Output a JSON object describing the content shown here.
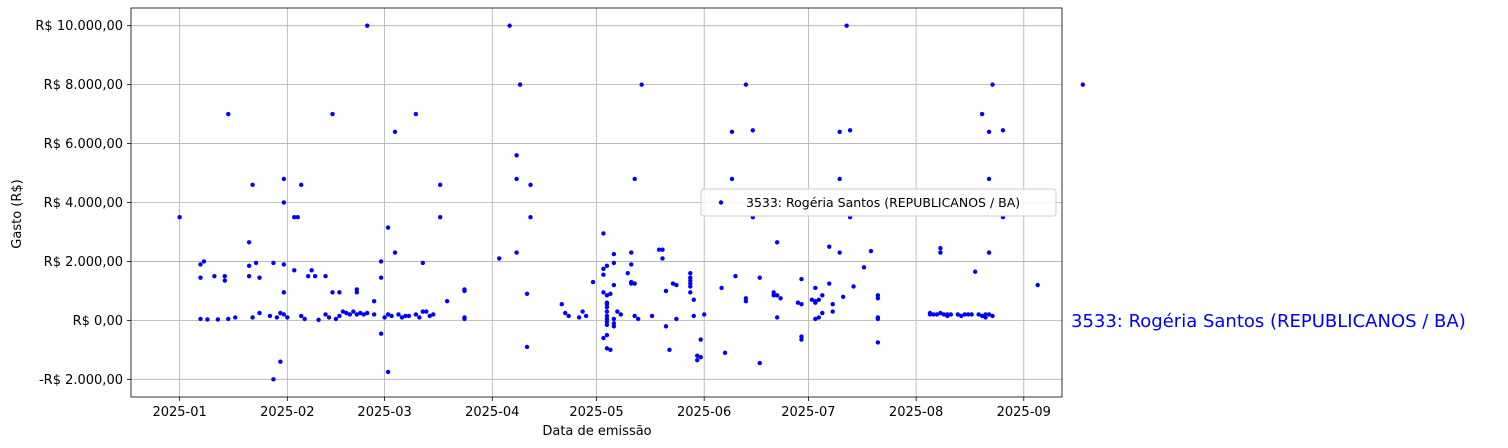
{
  "chart_data": {
    "type": "scatter",
    "xlabel": "Data de emissão",
    "ylabel": "Gasto (R$)",
    "x_ticks": [
      "2025-01",
      "2025-02",
      "2025-03",
      "2025-04",
      "2025-05",
      "2025-06",
      "2025-07",
      "2025-08",
      "2025-09"
    ],
    "y_ticks": [
      -2000,
      0,
      2000,
      4000,
      6000,
      8000,
      10000
    ],
    "y_tick_labels": [
      "-R$ 2.000,00",
      "R$ 0,00",
      "R$ 2.000,00",
      "R$ 4.000,00",
      "R$ 6.000,00",
      "R$ 8.000,00",
      "R$ 10.000,00"
    ],
    "xlim": [
      "2024-12-18",
      "2025-09-12"
    ],
    "ylim": [
      -2600,
      10600
    ],
    "grid": true,
    "legend_placement": "center-right",
    "side_label": "3533: Rogéria Santos (REPUBLICANOS / BA)",
    "series": [
      {
        "name": "3533: Rogéria Santos (REPUBLICANOS / BA)",
        "color": "#0000ff",
        "points": [
          [
            "2025-01-01",
            3500
          ],
          [
            "2025-01-07",
            1900
          ],
          [
            "2025-01-07",
            1450
          ],
          [
            "2025-01-08",
            2000
          ],
          [
            "2025-01-07",
            50
          ],
          [
            "2025-01-09",
            30
          ],
          [
            "2025-01-11",
            1500
          ],
          [
            "2025-01-12",
            30
          ],
          [
            "2025-01-14",
            1500
          ],
          [
            "2025-01-14",
            1350
          ],
          [
            "2025-01-15",
            7000
          ],
          [
            "2025-01-15",
            50
          ],
          [
            "2025-01-17",
            100
          ],
          [
            "2025-01-21",
            2650
          ],
          [
            "2025-01-22",
            4600
          ],
          [
            "2025-01-21",
            1850
          ],
          [
            "2025-01-21",
            1500
          ],
          [
            "2025-01-22",
            100
          ],
          [
            "2025-01-23",
            1950
          ],
          [
            "2025-01-24",
            1450
          ],
          [
            "2025-01-24",
            250
          ],
          [
            "2025-01-27",
            150
          ],
          [
            "2025-01-28",
            1950
          ],
          [
            "2025-01-28",
            -2000
          ],
          [
            "2025-01-29",
            100
          ],
          [
            "2025-01-30",
            -1400
          ],
          [
            "2025-01-30",
            250
          ],
          [
            "2025-01-31",
            4800
          ],
          [
            "2025-01-31",
            4000
          ],
          [
            "2025-01-31",
            1900
          ],
          [
            "2025-01-31",
            950
          ],
          [
            "2025-01-31",
            200
          ],
          [
            "2025-02-01",
            100
          ],
          [
            "2025-02-03",
            1700
          ],
          [
            "2025-02-03",
            3500
          ],
          [
            "2025-02-04",
            3500
          ],
          [
            "2025-02-05",
            4600
          ],
          [
            "2025-02-05",
            150
          ],
          [
            "2025-02-06",
            50
          ],
          [
            "2025-02-07",
            1500
          ],
          [
            "2025-02-08",
            1700
          ],
          [
            "2025-02-09",
            1500
          ],
          [
            "2025-02-10",
            20
          ],
          [
            "2025-02-12",
            1500
          ],
          [
            "2025-02-12",
            200
          ],
          [
            "2025-02-13",
            100
          ],
          [
            "2025-02-14",
            7000
          ],
          [
            "2025-02-14",
            950
          ],
          [
            "2025-02-15",
            50
          ],
          [
            "2025-02-16",
            950
          ],
          [
            "2025-02-16",
            150
          ],
          [
            "2025-02-17",
            300
          ],
          [
            "2025-02-18",
            250
          ],
          [
            "2025-02-19",
            200
          ],
          [
            "2025-02-20",
            300
          ],
          [
            "2025-02-21",
            1050
          ],
          [
            "2025-02-21",
            950
          ],
          [
            "2025-02-21",
            200
          ],
          [
            "2025-02-22",
            250
          ],
          [
            "2025-02-23",
            200
          ],
          [
            "2025-02-24",
            10000
          ],
          [
            "2025-02-24",
            250
          ],
          [
            "2025-02-26",
            650
          ],
          [
            "2025-02-26",
            200
          ],
          [
            "2025-02-28",
            2000
          ],
          [
            "2025-02-28",
            1450
          ],
          [
            "2025-02-28",
            -450
          ],
          [
            "2025-03-01",
            100
          ],
          [
            "2025-03-02",
            -1750
          ],
          [
            "2025-03-02",
            3150
          ],
          [
            "2025-03-02",
            200
          ],
          [
            "2025-03-03",
            150
          ],
          [
            "2025-03-04",
            6400
          ],
          [
            "2025-03-04",
            2300
          ],
          [
            "2025-03-05",
            200
          ],
          [
            "2025-03-06",
            100
          ],
          [
            "2025-03-07",
            150
          ],
          [
            "2025-03-08",
            150
          ],
          [
            "2025-03-10",
            7000
          ],
          [
            "2025-03-10",
            200
          ],
          [
            "2025-03-11",
            100
          ],
          [
            "2025-03-12",
            300
          ],
          [
            "2025-03-12",
            1950
          ],
          [
            "2025-03-13",
            300
          ],
          [
            "2025-03-14",
            150
          ],
          [
            "2025-03-15",
            200
          ],
          [
            "2025-03-17",
            4600
          ],
          [
            "2025-03-17",
            3500
          ],
          [
            "2025-03-19",
            650
          ],
          [
            "2025-03-24",
            1050
          ],
          [
            "2025-03-24",
            1000
          ],
          [
            "2025-03-24",
            100
          ],
          [
            "2025-03-24",
            50
          ],
          [
            "2025-04-03",
            2100
          ],
          [
            "2025-04-06",
            10000
          ],
          [
            "2025-04-08",
            5600
          ],
          [
            "2025-04-08",
            4800
          ],
          [
            "2025-04-08",
            2300
          ],
          [
            "2025-04-09",
            8000
          ],
          [
            "2025-04-11",
            900
          ],
          [
            "2025-04-11",
            -900
          ],
          [
            "2025-04-12",
            4600
          ],
          [
            "2025-04-12",
            3500
          ],
          [
            "2025-04-21",
            550
          ],
          [
            "2025-04-22",
            250
          ],
          [
            "2025-04-23",
            150
          ],
          [
            "2025-04-26",
            100
          ],
          [
            "2025-04-27",
            300
          ],
          [
            "2025-04-28",
            150
          ],
          [
            "2025-04-30",
            1300
          ],
          [
            "2025-05-03",
            2950
          ],
          [
            "2025-05-03",
            1750
          ],
          [
            "2025-05-04",
            1850
          ],
          [
            "2025-05-03",
            1550
          ],
          [
            "2025-05-03",
            950
          ],
          [
            "2025-05-04",
            850
          ],
          [
            "2025-05-04",
            600
          ],
          [
            "2025-05-04",
            550
          ],
          [
            "2025-05-04",
            450
          ],
          [
            "2025-05-04",
            300
          ],
          [
            "2025-05-04",
            150
          ],
          [
            "2025-05-04",
            50
          ],
          [
            "2025-05-04",
            -50
          ],
          [
            "2025-05-04",
            -150
          ],
          [
            "2025-05-04",
            -500
          ],
          [
            "2025-05-03",
            -600
          ],
          [
            "2025-05-04",
            -950
          ],
          [
            "2025-05-05",
            -1000
          ],
          [
            "2025-05-05",
            900
          ],
          [
            "2025-05-06",
            1950
          ],
          [
            "2025-05-06",
            2250
          ],
          [
            "2025-05-06",
            1200
          ],
          [
            "2025-05-06",
            -100
          ],
          [
            "2025-05-06",
            -200
          ],
          [
            "2025-05-06",
            50
          ],
          [
            "2025-05-07",
            300
          ],
          [
            "2025-05-08",
            200
          ],
          [
            "2025-05-10",
            1600
          ],
          [
            "2025-05-11",
            2300
          ],
          [
            "2025-05-11",
            1900
          ],
          [
            "2025-05-11",
            1300
          ],
          [
            "2025-05-11",
            1250
          ],
          [
            "2025-05-12",
            4800
          ],
          [
            "2025-05-12",
            1250
          ],
          [
            "2025-05-12",
            150
          ],
          [
            "2025-05-13",
            50
          ],
          [
            "2025-05-14",
            8000
          ],
          [
            "2025-05-17",
            150
          ],
          [
            "2025-05-19",
            2400
          ],
          [
            "2025-05-20",
            2400
          ],
          [
            "2025-05-20",
            2100
          ],
          [
            "2025-05-21",
            1000
          ],
          [
            "2025-05-21",
            -200
          ],
          [
            "2025-05-22",
            -1000
          ],
          [
            "2025-05-23",
            1250
          ],
          [
            "2025-05-24",
            1200
          ],
          [
            "2025-05-24",
            50
          ],
          [
            "2025-05-28",
            1600
          ],
          [
            "2025-05-28",
            1450
          ],
          [
            "2025-05-28",
            1350
          ],
          [
            "2025-05-28",
            1250
          ],
          [
            "2025-05-28",
            1150
          ],
          [
            "2025-05-28",
            950
          ],
          [
            "2025-05-29",
            700
          ],
          [
            "2025-05-29",
            150
          ],
          [
            "2025-05-30",
            -1200
          ],
          [
            "2025-05-30",
            -1350
          ],
          [
            "2025-05-31",
            -1250
          ],
          [
            "2025-05-31",
            -650
          ],
          [
            "2025-06-01",
            200
          ],
          [
            "2025-06-06",
            1100
          ],
          [
            "2025-06-07",
            -1100
          ],
          [
            "2025-06-09",
            6400
          ],
          [
            "2025-06-09",
            4800
          ],
          [
            "2025-06-10",
            1500
          ],
          [
            "2025-06-13",
            8000
          ],
          [
            "2025-06-13",
            750
          ],
          [
            "2025-06-13",
            650
          ],
          [
            "2025-06-15",
            6450
          ],
          [
            "2025-06-15",
            3500
          ],
          [
            "2025-06-17",
            1450
          ],
          [
            "2025-06-17",
            -1450
          ],
          [
            "2025-06-21",
            850
          ],
          [
            "2025-06-21",
            950
          ],
          [
            "2025-06-22",
            2650
          ],
          [
            "2025-06-22",
            850
          ],
          [
            "2025-06-22",
            100
          ],
          [
            "2025-06-23",
            750
          ],
          [
            "2025-06-28",
            600
          ],
          [
            "2025-06-29",
            1400
          ],
          [
            "2025-06-29",
            550
          ],
          [
            "2025-06-29",
            -550
          ],
          [
            "2025-06-29",
            -650
          ],
          [
            "2025-07-02",
            700
          ],
          [
            "2025-07-03",
            650
          ],
          [
            "2025-07-03",
            600
          ],
          [
            "2025-07-03",
            1100
          ],
          [
            "2025-07-03",
            50
          ],
          [
            "2025-07-04",
            100
          ],
          [
            "2025-07-04",
            700
          ],
          [
            "2025-07-05",
            850
          ],
          [
            "2025-07-05",
            250
          ],
          [
            "2025-07-07",
            2500
          ],
          [
            "2025-07-07",
            1250
          ],
          [
            "2025-07-08",
            300
          ],
          [
            "2025-07-08",
            550
          ],
          [
            "2025-07-10",
            6400
          ],
          [
            "2025-07-10",
            4800
          ],
          [
            "2025-07-10",
            2300
          ],
          [
            "2025-07-11",
            800
          ],
          [
            "2025-07-12",
            10000
          ],
          [
            "2025-07-13",
            6450
          ],
          [
            "2025-07-13",
            3500
          ],
          [
            "2025-07-14",
            1150
          ],
          [
            "2025-07-17",
            1800
          ],
          [
            "2025-07-19",
            2350
          ],
          [
            "2025-07-21",
            850
          ],
          [
            "2025-07-21",
            750
          ],
          [
            "2025-07-21",
            100
          ],
          [
            "2025-07-21",
            50
          ],
          [
            "2025-07-21",
            -750
          ],
          [
            "2025-08-05",
            200
          ],
          [
            "2025-08-05",
            250
          ],
          [
            "2025-08-06",
            200
          ],
          [
            "2025-08-07",
            200
          ],
          [
            "2025-08-08",
            250
          ],
          [
            "2025-08-08",
            2450
          ],
          [
            "2025-08-08",
            2300
          ],
          [
            "2025-08-09",
            200
          ],
          [
            "2025-08-10",
            150
          ],
          [
            "2025-08-10",
            200
          ],
          [
            "2025-08-11",
            200
          ],
          [
            "2025-08-13",
            200
          ],
          [
            "2025-08-14",
            150
          ],
          [
            "2025-08-15",
            200
          ],
          [
            "2025-08-16",
            200
          ],
          [
            "2025-08-17",
            200
          ],
          [
            "2025-08-18",
            1650
          ],
          [
            "2025-08-19",
            200
          ],
          [
            "2025-08-20",
            150
          ],
          [
            "2025-08-21",
            200
          ],
          [
            "2025-08-21",
            100
          ],
          [
            "2025-08-22",
            6400
          ],
          [
            "2025-08-22",
            4800
          ],
          [
            "2025-08-22",
            2300
          ],
          [
            "2025-08-22",
            200
          ],
          [
            "2025-08-23",
            150
          ],
          [
            "2025-08-23",
            8000
          ],
          [
            "2025-08-26",
            6450
          ],
          [
            "2025-08-26",
            3500
          ],
          [
            "2025-08-20",
            7000
          ],
          [
            "2025-09-05",
            1200
          ],
          [
            "2025-09-18",
            8000
          ]
        ]
      }
    ]
  }
}
